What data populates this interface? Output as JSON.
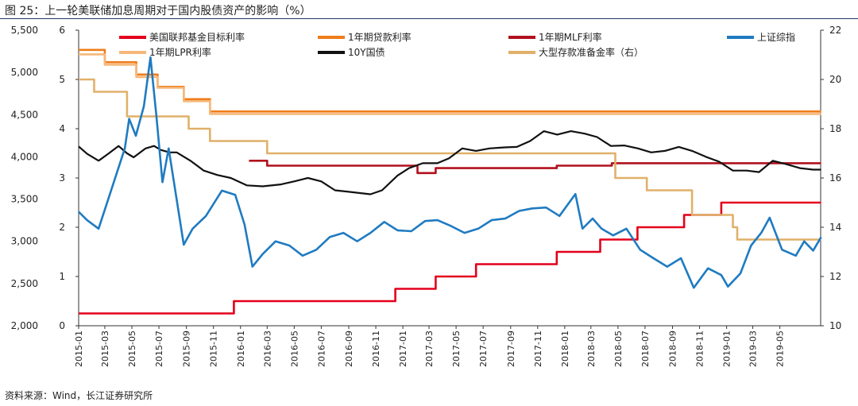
{
  "title": "图 25：上一轮美联储加息周期对于国内股债资产的影响（%）",
  "source": "资料来源：Wind，长江证券研究所",
  "chart_data": {
    "type": "line",
    "title": "图 25：上一轮美联储加息周期对于国内股债资产的影响（%）",
    "legend_placement": "top",
    "grid": false,
    "x_ticks": [
      "2015-01",
      "2015-03",
      "2015-05",
      "2015-07",
      "2015-09",
      "2015-11",
      "2016-01",
      "2016-03",
      "2016-05",
      "2016-07",
      "2016-09",
      "2016-11",
      "2017-01",
      "2017-03",
      "2017-05",
      "2017-07",
      "2017-09",
      "2017-11",
      "2018-01",
      "2018-03",
      "2018-05",
      "2018-07",
      "2018-09",
      "2018-11",
      "2019-01",
      "2019-03",
      "2019-05"
    ],
    "x_range": [
      "2015-01",
      "2019-08"
    ],
    "axes": {
      "left_outer": {
        "label": "",
        "range": [
          2000,
          5500
        ],
        "ticks": [
          "2,000",
          "2,500",
          "3,000",
          "3,500",
          "4,000",
          "4,500",
          "5,000",
          "5,500"
        ],
        "tick_values": [
          2000,
          2500,
          3000,
          3500,
          4000,
          4500,
          5000,
          5500
        ]
      },
      "left_inner": {
        "label": "",
        "range": [
          0,
          6
        ],
        "ticks": [
          "0",
          "1",
          "2",
          "3",
          "4",
          "5",
          "6"
        ],
        "tick_values": [
          0,
          1,
          2,
          3,
          4,
          5,
          6
        ]
      },
      "right": {
        "label": "",
        "range": [
          10,
          22
        ],
        "ticks": [
          "10",
          "12",
          "14",
          "16",
          "18",
          "20",
          "22"
        ],
        "tick_values": [
          10,
          12,
          14,
          16,
          18,
          20,
          22
        ]
      }
    },
    "series": [
      {
        "name": "美国联邦基金目标利率",
        "color": "#e3001b",
        "axis": "left_inner",
        "step": true,
        "points": [
          [
            "2015-01-01",
            0.25
          ],
          [
            "2015-12-17",
            0.5
          ],
          [
            "2016-12-15",
            0.75
          ],
          [
            "2017-03-16",
            1.0
          ],
          [
            "2017-06-15",
            1.25
          ],
          [
            "2017-12-14",
            1.5
          ],
          [
            "2018-03-22",
            1.75
          ],
          [
            "2018-06-14",
            2.0
          ],
          [
            "2018-09-27",
            2.25
          ],
          [
            "2018-12-20",
            2.5
          ],
          [
            "2019-08-02",
            2.5
          ]
        ]
      },
      {
        "name": "1年期贷款利率",
        "color": "#f07d1a",
        "axis": "left_inner",
        "step": true,
        "points": [
          [
            "2015-01-01",
            5.6
          ],
          [
            "2015-03-01",
            5.35
          ],
          [
            "2015-05-11",
            5.1
          ],
          [
            "2015-06-28",
            4.85
          ],
          [
            "2015-08-26",
            4.6
          ],
          [
            "2015-10-24",
            4.35
          ],
          [
            "2019-08-02",
            4.35
          ]
        ]
      },
      {
        "name": "1年期MLF利率",
        "color": "#b0111e",
        "axis": "left_inner",
        "step": true,
        "points": [
          [
            "2016-01-20",
            3.35
          ],
          [
            "2016-03-01",
            3.25
          ],
          [
            "2017-02-03",
            3.1
          ],
          [
            "2017-03-16",
            3.2
          ],
          [
            "2017-12-14",
            3.25
          ],
          [
            "2018-04-17",
            3.3
          ],
          [
            "2019-08-02",
            3.3
          ]
        ]
      },
      {
        "name": "1年期LPR利率",
        "color": "#f5b87a",
        "axis": "left_inner",
        "step": true,
        "points": [
          [
            "2015-01-01",
            5.51
          ],
          [
            "2015-03-01",
            5.3
          ],
          [
            "2015-05-11",
            5.05
          ],
          [
            "2015-06-28",
            4.83
          ],
          [
            "2015-08-26",
            4.56
          ],
          [
            "2015-10-24",
            4.3
          ],
          [
            "2019-08-02",
            4.3
          ]
        ]
      },
      {
        "name": "10Y国债",
        "color": "#111111",
        "axis": "left_inner",
        "step": false,
        "points": [
          [
            "2015-01-01",
            3.64
          ],
          [
            "2015-01-20",
            3.49
          ],
          [
            "2015-02-15",
            3.35
          ],
          [
            "2015-03-10",
            3.5
          ],
          [
            "2015-04-01",
            3.65
          ],
          [
            "2015-04-20",
            3.5
          ],
          [
            "2015-05-05",
            3.42
          ],
          [
            "2015-06-01",
            3.6
          ],
          [
            "2015-06-20",
            3.65
          ],
          [
            "2015-07-05",
            3.57
          ],
          [
            "2015-07-25",
            3.52
          ],
          [
            "2015-08-10",
            3.52
          ],
          [
            "2015-09-10",
            3.35
          ],
          [
            "2015-10-10",
            3.15
          ],
          [
            "2015-11-10",
            3.06
          ],
          [
            "2015-12-10",
            3.0
          ],
          [
            "2016-01-15",
            2.85
          ],
          [
            "2016-02-20",
            2.83
          ],
          [
            "2016-04-01",
            2.87
          ],
          [
            "2016-05-01",
            2.93
          ],
          [
            "2016-06-01",
            3.0
          ],
          [
            "2016-07-01",
            2.93
          ],
          [
            "2016-08-01",
            2.75
          ],
          [
            "2016-09-01",
            2.72
          ],
          [
            "2016-10-20",
            2.67
          ],
          [
            "2016-11-15",
            2.75
          ],
          [
            "2016-12-20",
            3.05
          ],
          [
            "2017-01-15",
            3.2
          ],
          [
            "2017-02-15",
            3.3
          ],
          [
            "2017-03-20",
            3.3
          ],
          [
            "2017-04-15",
            3.4
          ],
          [
            "2017-05-15",
            3.6
          ],
          [
            "2017-06-15",
            3.55
          ],
          [
            "2017-07-15",
            3.6
          ],
          [
            "2017-08-15",
            3.62
          ],
          [
            "2017-09-15",
            3.63
          ],
          [
            "2017-10-15",
            3.75
          ],
          [
            "2017-11-15",
            3.95
          ],
          [
            "2017-12-15",
            3.88
          ],
          [
            "2018-01-15",
            3.95
          ],
          [
            "2018-02-15",
            3.9
          ],
          [
            "2018-03-15",
            3.83
          ],
          [
            "2018-04-15",
            3.65
          ],
          [
            "2018-05-15",
            3.66
          ],
          [
            "2018-06-15",
            3.6
          ],
          [
            "2018-07-15",
            3.52
          ],
          [
            "2018-08-15",
            3.55
          ],
          [
            "2018-09-15",
            3.63
          ],
          [
            "2018-10-15",
            3.55
          ],
          [
            "2018-11-15",
            3.43
          ],
          [
            "2018-12-15",
            3.33
          ],
          [
            "2019-01-15",
            3.15
          ],
          [
            "2019-02-15",
            3.15
          ],
          [
            "2019-03-15",
            3.12
          ],
          [
            "2019-04-15",
            3.35
          ],
          [
            "2019-05-15",
            3.28
          ],
          [
            "2019-06-15",
            3.2
          ],
          [
            "2019-07-15",
            3.17
          ],
          [
            "2019-08-02",
            3.17
          ]
        ]
      },
      {
        "name": "大型存款准备金率（右）",
        "color": "#e0b16a",
        "axis": "right",
        "step": true,
        "points": [
          [
            "2015-01-01",
            20.0
          ],
          [
            "2015-02-05",
            19.5
          ],
          [
            "2015-04-20",
            18.5
          ],
          [
            "2015-06-28",
            18.5
          ],
          [
            "2015-09-06",
            18.0
          ],
          [
            "2015-10-24",
            17.5
          ],
          [
            "2016-03-01",
            17.0
          ],
          [
            "2018-04-25",
            16.0
          ],
          [
            "2018-07-05",
            15.5
          ],
          [
            "2018-10-15",
            14.5
          ],
          [
            "2019-01-15",
            14.0
          ],
          [
            "2019-01-25",
            13.5
          ],
          [
            "2019-08-02",
            13.5
          ]
        ]
      },
      {
        "name": "上证综指",
        "color": "#1f7bc1",
        "axis": "left_outer",
        "step": false,
        "points": [
          [
            "2015-01-01",
            3350
          ],
          [
            "2015-01-20",
            3250
          ],
          [
            "2015-02-15",
            3150
          ],
          [
            "2015-03-15",
            3600
          ],
          [
            "2015-04-15",
            4100
          ],
          [
            "2015-04-25",
            4450
          ],
          [
            "2015-05-10",
            4250
          ],
          [
            "2015-05-28",
            4600
          ],
          [
            "2015-06-12",
            5178
          ],
          [
            "2015-06-25",
            4500
          ],
          [
            "2015-07-09",
            3700
          ],
          [
            "2015-07-23",
            4100
          ],
          [
            "2015-08-26",
            2960
          ],
          [
            "2015-09-15",
            3150
          ],
          [
            "2015-10-15",
            3300
          ],
          [
            "2015-11-20",
            3600
          ],
          [
            "2015-12-20",
            3550
          ],
          [
            "2016-01-10",
            3200
          ],
          [
            "2016-01-28",
            2700
          ],
          [
            "2016-02-20",
            2850
          ],
          [
            "2016-03-20",
            3000
          ],
          [
            "2016-04-20",
            2950
          ],
          [
            "2016-05-20",
            2830
          ],
          [
            "2016-06-20",
            2900
          ],
          [
            "2016-07-20",
            3050
          ],
          [
            "2016-08-20",
            3100
          ],
          [
            "2016-09-20",
            3000
          ],
          [
            "2016-10-20",
            3100
          ],
          [
            "2016-11-20",
            3230
          ],
          [
            "2016-12-20",
            3130
          ],
          [
            "2017-01-20",
            3120
          ],
          [
            "2017-02-20",
            3240
          ],
          [
            "2017-03-20",
            3250
          ],
          [
            "2017-04-20",
            3180
          ],
          [
            "2017-05-20",
            3100
          ],
          [
            "2017-06-20",
            3150
          ],
          [
            "2017-07-20",
            3250
          ],
          [
            "2017-08-20",
            3270
          ],
          [
            "2017-09-20",
            3360
          ],
          [
            "2017-10-20",
            3390
          ],
          [
            "2017-11-20",
            3400
          ],
          [
            "2017-12-20",
            3300
          ],
          [
            "2018-01-25",
            3560
          ],
          [
            "2018-02-10",
            3150
          ],
          [
            "2018-03-05",
            3270
          ],
          [
            "2018-03-25",
            3150
          ],
          [
            "2018-04-20",
            3070
          ],
          [
            "2018-05-20",
            3150
          ],
          [
            "2018-06-20",
            2900
          ],
          [
            "2018-07-20",
            2800
          ],
          [
            "2018-08-20",
            2700
          ],
          [
            "2018-09-20",
            2800
          ],
          [
            "2018-10-19",
            2450
          ],
          [
            "2018-11-20",
            2680
          ],
          [
            "2018-12-20",
            2600
          ],
          [
            "2019-01-04",
            2464
          ],
          [
            "2019-02-01",
            2620
          ],
          [
            "2019-02-25",
            2950
          ],
          [
            "2019-03-20",
            3100
          ],
          [
            "2019-04-08",
            3280
          ],
          [
            "2019-05-06",
            2900
          ],
          [
            "2019-06-06",
            2830
          ],
          [
            "2019-06-25",
            3000
          ],
          [
            "2019-07-15",
            2890
          ],
          [
            "2019-08-02",
            3050
          ]
        ]
      }
    ]
  }
}
